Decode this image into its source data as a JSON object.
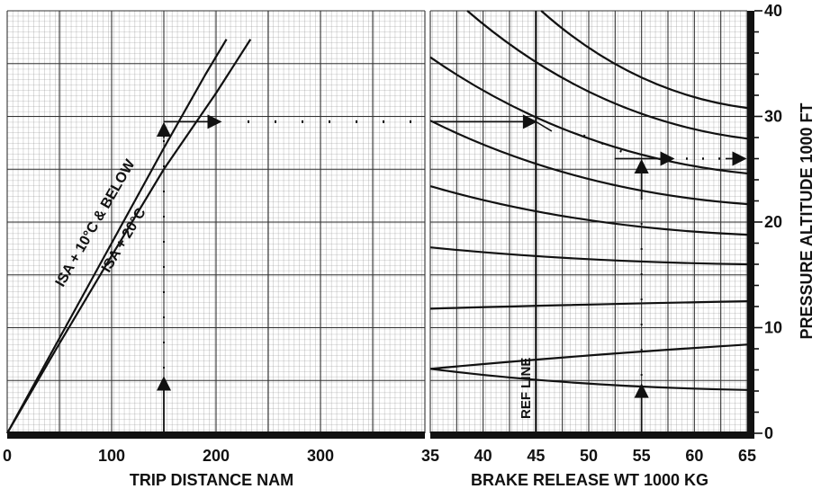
{
  "chart_data": [
    {
      "type": "line",
      "title": "",
      "xlabel": "TRIP DISTANCE NAM",
      "x_ticks": [
        "0",
        "100",
        "200",
        "300"
      ],
      "xlim": [
        0,
        400
      ],
      "series": [
        {
          "name": "ISA + 10°C & BELOW",
          "points": [
            [
              0,
              0
            ],
            [
              50,
              9
            ],
            [
              100,
              18
            ],
            [
              150,
              27
            ],
            [
              190,
              34
            ],
            [
              210,
              37.3
            ]
          ]
        },
        {
          "name": "ISA + 20°C",
          "points": [
            [
              0,
              0
            ],
            [
              50,
              8.5
            ],
            [
              100,
              16.8
            ],
            [
              150,
              25
            ],
            [
              200,
              32.2
            ],
            [
              233,
              37.3
            ]
          ]
        }
      ],
      "curve_labels": {
        "isa10": "ISA + 10°C & BELOW",
        "isa20": "ISA + 20°C"
      },
      "example_path": {
        "trip_distance": 150,
        "altitude": 29.5
      }
    },
    {
      "type": "line",
      "title": "",
      "xlabel": "BRAKE RELEASE WT   1000 KG",
      "x_ticks": [
        "35",
        "40",
        "45",
        "50",
        "55",
        "60",
        "65"
      ],
      "xlim": [
        35,
        65
      ],
      "ylabel": "PRESSURE  ALTITUDE   1000  FT",
      "y_ticks": [
        "0",
        "10",
        "20",
        "30",
        "40"
      ],
      "ylim": [
        0,
        40
      ],
      "reference_line": {
        "label": "REF LINE",
        "weight": 45
      },
      "guide_lines": [
        {
          "start_weight": 45.5,
          "start_alt": 40.0,
          "end_weight": 65,
          "end_alt": 30.8
        },
        {
          "start_weight": 38.5,
          "start_alt": 40.0,
          "end_weight": 65,
          "end_alt": 27.9
        },
        {
          "start_weight": 35.0,
          "start_alt": 35.6,
          "end_weight": 65,
          "end_alt": 24.6
        },
        {
          "start_weight": 35.0,
          "start_alt": 29.6,
          "end_weight": 65,
          "end_alt": 21.7
        },
        {
          "start_weight": 35.0,
          "start_alt": 23.4,
          "end_weight": 65,
          "end_alt": 18.8
        },
        {
          "start_weight": 35.0,
          "start_alt": 17.6,
          "end_weight": 65,
          "end_alt": 16.0
        },
        {
          "start_weight": 35.0,
          "start_alt": 11.8,
          "end_weight": 65,
          "end_alt": 12.5
        },
        {
          "start_weight": 35.0,
          "start_alt": 6.1,
          "end_weight": 65,
          "end_alt": 8.4
        },
        {
          "start_weight": 35.0,
          "start_alt": 6.1,
          "end_weight": 65,
          "end_alt": 4.1
        }
      ],
      "example_path": {
        "brake_release_weight": 55,
        "ref_altitude": 29.5,
        "result_altitude": 26
      }
    }
  ]
}
